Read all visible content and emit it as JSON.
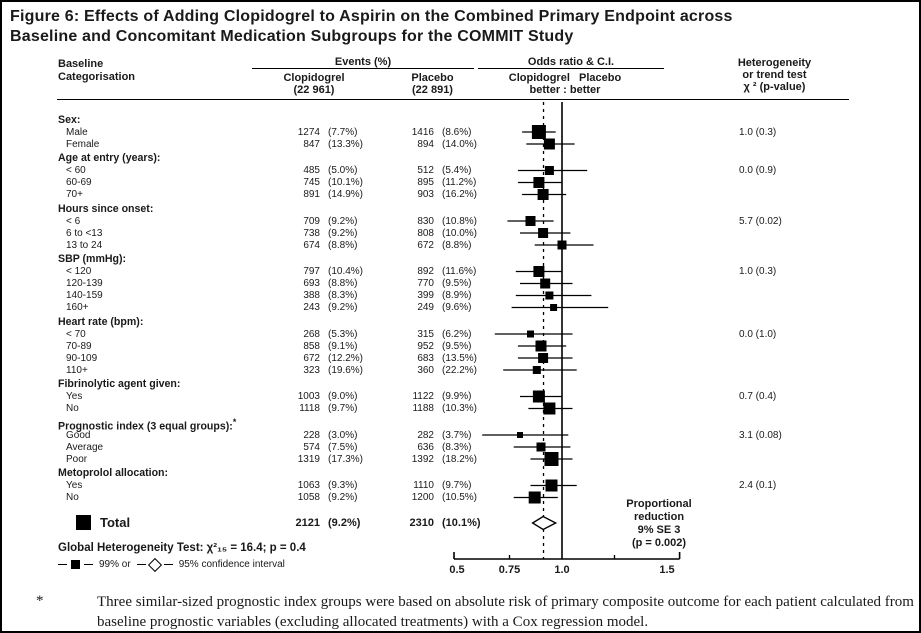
{
  "figure": {
    "title_line1": "Figure 6: Effects of Adding Clopidogrel to Aspirin on the Combined Primary Endpoint across",
    "title_line2": "Baseline and Concomitant Medication Subgroups for the COMMIT Study"
  },
  "header": {
    "baseline1": "Baseline",
    "baseline2": "Categorisation",
    "events": "Events (%)",
    "clop1": "Clopidogrel",
    "clop2": "(22 961)",
    "pla1": "Placebo",
    "pla2": "(22 891)",
    "or_ci": "Odds ratio & C.I.",
    "or_sub1": "Clopidogrel   Placebo",
    "or_sub2": "better : better",
    "het1": "Heterogeneity",
    "het2": "or trend test",
    "het3": "χ ² (p-value)"
  },
  "global_het": "Global Heterogeneity Test:   χ²₁₅ = 16.4; p = 0.4",
  "legend": {
    "sq_label": "99% or",
    "diamond_label": "95% confidence interval"
  },
  "prop_reduction": [
    "Proportional",
    "reduction",
    "9% SE 3",
    "(p = 0.002)"
  ],
  "footnote": {
    "marker": "*",
    "text": "Three similar-sized prognostic index groups were based on absolute risk of primary composite outcome for each patient calculated from baseline prognostic variables (excluding allocated treatments) with a Cox regression model."
  },
  "chart_data": {
    "type": "forest",
    "title": "Effects of Adding Clopidogrel to Aspirin on the Combined Primary Endpoint across Baseline and Concomitant Medication Subgroups (COMMIT)",
    "x_axis": {
      "scale": "linear",
      "min": 0.5,
      "max": 1.56,
      "ticks": [
        {
          "v": 0.5,
          "t": "0.5"
        },
        {
          "v": 0.75,
          "t": "0.75"
        },
        {
          "v": 1.0,
          "t": "1.0"
        },
        {
          "v": 1.5,
          "t": "1.5"
        }
      ],
      "minor_ticks": [
        0.75,
        1.25
      ],
      "solid_reference": 1.0,
      "dashed_reference": 0.912
    },
    "sections": [
      {
        "label": "Sex:",
        "het": "1.0 (0.3)",
        "rows": [
          {
            "label": "Male",
            "clop_n": "1274",
            "clop_pct": "(7.7%)",
            "pla_n": "1416",
            "pla_pct": "(8.6%)",
            "or": 0.89,
            "lo": 0.81,
            "hi": 0.97,
            "size": 14
          },
          {
            "label": "Female",
            "clop_n": "847",
            "clop_pct": "(13.3%)",
            "pla_n": "894",
            "pla_pct": "(14.0%)",
            "or": 0.94,
            "lo": 0.83,
            "hi": 1.06,
            "size": 11
          }
        ]
      },
      {
        "label": "Age at entry (years):",
        "het": "0.0 (0.9)",
        "rows": [
          {
            "label": "< 60",
            "clop_n": "485",
            "clop_pct": "(5.0%)",
            "pla_n": "512",
            "pla_pct": "(5.4%)",
            "or": 0.94,
            "lo": 0.79,
            "hi": 1.12,
            "size": 9
          },
          {
            "label": "60-69",
            "clop_n": "745",
            "clop_pct": "(10.1%)",
            "pla_n": "895",
            "pla_pct": "(11.2%)",
            "or": 0.89,
            "lo": 0.79,
            "hi": 1.0,
            "size": 11
          },
          {
            "label": "70+",
            "clop_n": "891",
            "clop_pct": "(14.9%)",
            "pla_n": "903",
            "pla_pct": "(16.2%)",
            "or": 0.91,
            "lo": 0.81,
            "hi": 1.02,
            "size": 11
          }
        ]
      },
      {
        "label": "Hours since onset:",
        "het": "5.7 (0.02)",
        "rows": [
          {
            "label": "< 6",
            "clop_n": "709",
            "clop_pct": "(9.2%)",
            "pla_n": "830",
            "pla_pct": "(10.8%)",
            "or": 0.85,
            "lo": 0.74,
            "hi": 0.96,
            "size": 10
          },
          {
            "label": "6 to <13",
            "clop_n": "738",
            "clop_pct": "(9.2%)",
            "pla_n": "808",
            "pla_pct": "(10.0%)",
            "or": 0.91,
            "lo": 0.8,
            "hi": 1.04,
            "size": 10
          },
          {
            "label": "13 to 24",
            "clop_n": "674",
            "clop_pct": "(8.8%)",
            "pla_n": "672",
            "pla_pct": "(8.8%)",
            "or": 1.0,
            "lo": 0.87,
            "hi": 1.15,
            "size": 9
          }
        ]
      },
      {
        "label": "SBP (mmHg):",
        "het": "1.0 (0.3)",
        "rows": [
          {
            "label": "< 120",
            "clop_n": "797",
            "clop_pct": "(10.4%)",
            "pla_n": "892",
            "pla_pct": "(11.6%)",
            "or": 0.89,
            "lo": 0.78,
            "hi": 1.0,
            "size": 11
          },
          {
            "label": "120-139",
            "clop_n": "693",
            "clop_pct": "(8.8%)",
            "pla_n": "770",
            "pla_pct": "(9.5%)",
            "or": 0.92,
            "lo": 0.8,
            "hi": 1.05,
            "size": 10
          },
          {
            "label": "140-159",
            "clop_n": "388",
            "clop_pct": "(8.3%)",
            "pla_n": "399",
            "pla_pct": "(8.9%)",
            "or": 0.94,
            "lo": 0.78,
            "hi": 1.14,
            "size": 8
          },
          {
            "label": "160+",
            "clop_n": "243",
            "clop_pct": "(9.2%)",
            "pla_n": "249",
            "pla_pct": "(9.6%)",
            "or": 0.96,
            "lo": 0.76,
            "hi": 1.22,
            "size": 7
          }
        ]
      },
      {
        "label": "Heart rate (bpm):",
        "het": "0.0 (1.0)",
        "rows": [
          {
            "label": "< 70",
            "clop_n": "268",
            "clop_pct": "(5.3%)",
            "pla_n": "315",
            "pla_pct": "(6.2%)",
            "or": 0.85,
            "lo": 0.68,
            "hi": 1.05,
            "size": 7
          },
          {
            "label": "70-89",
            "clop_n": "858",
            "clop_pct": "(9.1%)",
            "pla_n": "952",
            "pla_pct": "(9.5%)",
            "or": 0.9,
            "lo": 0.79,
            "hi": 1.02,
            "size": 11
          },
          {
            "label": "90-109",
            "clop_n": "672",
            "clop_pct": "(12.2%)",
            "pla_n": "683",
            "pla_pct": "(13.5%)",
            "or": 0.91,
            "lo": 0.79,
            "hi": 1.05,
            "size": 10
          },
          {
            "label": "110+",
            "clop_n": "323",
            "clop_pct": "(19.6%)",
            "pla_n": "360",
            "pla_pct": "(22.2%)",
            "or": 0.88,
            "lo": 0.72,
            "hi": 1.07,
            "size": 8
          }
        ]
      },
      {
        "label": "Fibrinolytic agent given:",
        "het": "0.7 (0.4)",
        "rows": [
          {
            "label": "Yes",
            "clop_n": "1003",
            "clop_pct": "(9.0%)",
            "pla_n": "1122",
            "pla_pct": "(9.9%)",
            "or": 0.89,
            "lo": 0.8,
            "hi": 1.0,
            "size": 12
          },
          {
            "label": "No",
            "clop_n": "1118",
            "clop_pct": "(9.7%)",
            "pla_n": "1188",
            "pla_pct": "(10.3%)",
            "or": 0.94,
            "lo": 0.84,
            "hi": 1.05,
            "size": 12
          }
        ]
      },
      {
        "label": "Prognostic index (3 equal groups):",
        "star": "*",
        "het": "3.1 (0.08)",
        "rows": [
          {
            "label": "Good",
            "clop_n": "228",
            "clop_pct": "(3.0%)",
            "pla_n": "282",
            "pla_pct": "(3.7%)",
            "or": 0.8,
            "lo": 0.62,
            "hi": 1.03,
            "size": 6
          },
          {
            "label": "Average",
            "clop_n": "574",
            "clop_pct": "(7.5%)",
            "pla_n": "636",
            "pla_pct": "(8.3%)",
            "or": 0.9,
            "lo": 0.77,
            "hi": 1.04,
            "size": 9
          },
          {
            "label": "Poor",
            "clop_n": "1319",
            "clop_pct": "(17.3%)",
            "pla_n": "1392",
            "pla_pct": "(18.2%)",
            "or": 0.95,
            "lo": 0.85,
            "hi": 1.05,
            "size": 14
          }
        ]
      },
      {
        "label": "Metoprolol allocation:",
        "het": "2.4 (0.1)",
        "rows": [
          {
            "label": "Yes",
            "clop_n": "1063",
            "clop_pct": "(9.3%)",
            "pla_n": "1110",
            "pla_pct": "(9.7%)",
            "or": 0.95,
            "lo": 0.85,
            "hi": 1.07,
            "size": 12
          },
          {
            "label": "No",
            "clop_n": "1058",
            "clop_pct": "(9.2%)",
            "pla_n": "1200",
            "pla_pct": "(10.5%)",
            "or": 0.87,
            "lo": 0.77,
            "hi": 0.98,
            "size": 12
          }
        ]
      }
    ],
    "total": {
      "label": "Total",
      "clop_n": "2121",
      "clop_pct": "(9.2%)",
      "pla_n": "2310",
      "pla_pct": "(10.1%)",
      "or": 0.91,
      "lo": 0.86,
      "hi": 0.97
    }
  }
}
